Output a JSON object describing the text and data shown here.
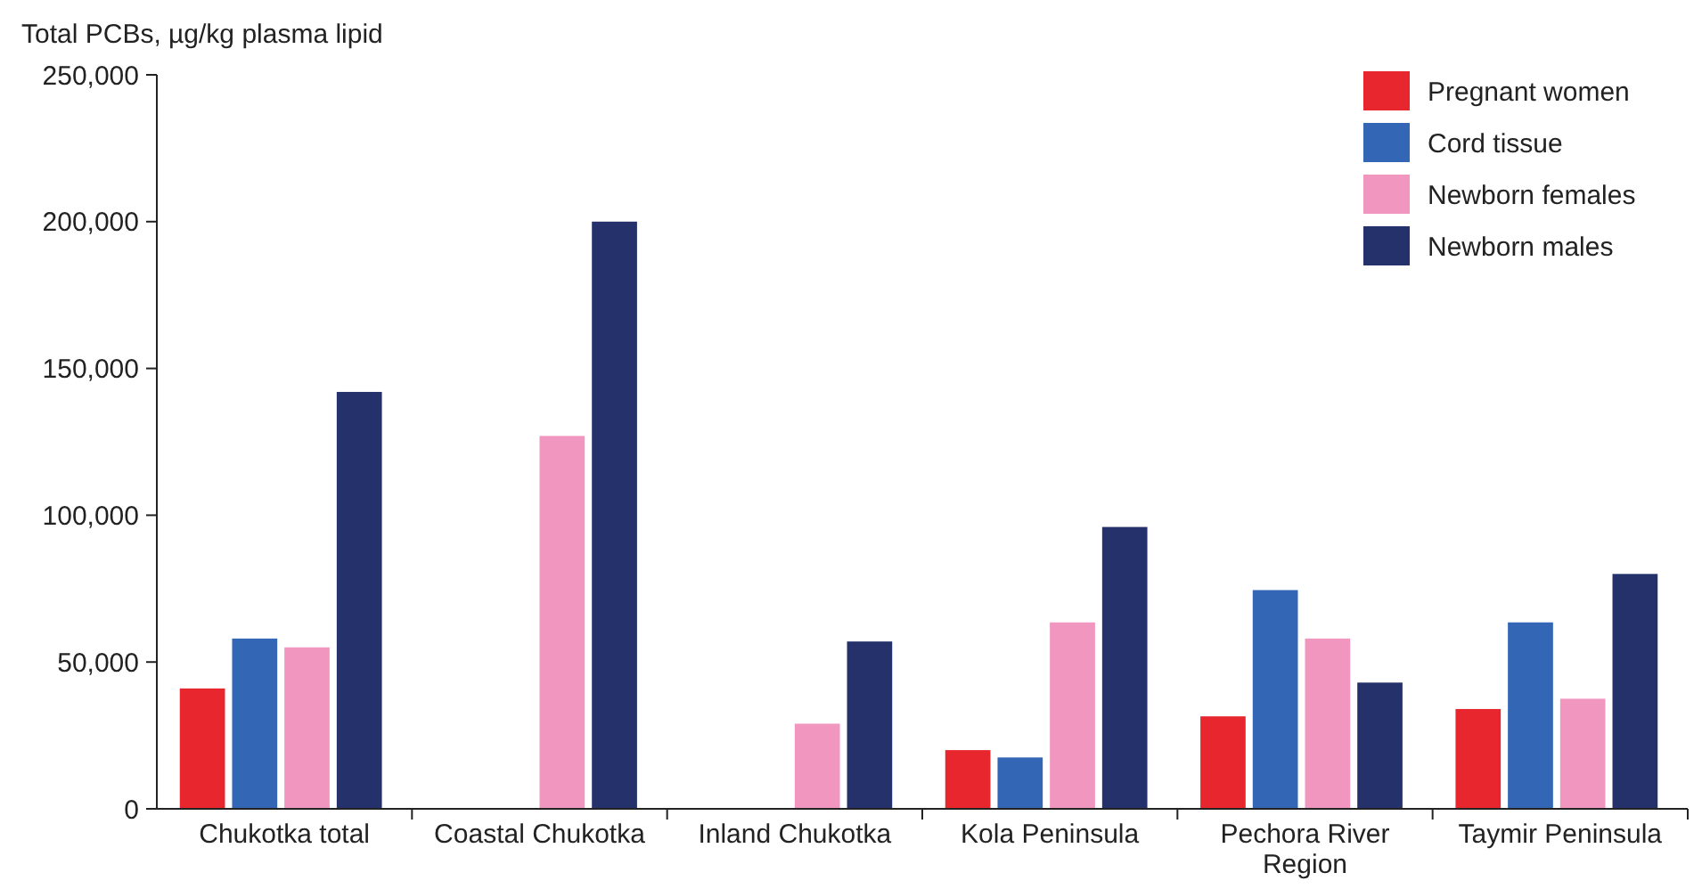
{
  "chart_data": {
    "type": "bar",
    "ylabel": "Total PCBs, µg/kg plasma lipid",
    "categories": [
      "Chukotka total",
      "Coastal Chukotka",
      "Inland Chukotka",
      "Kola Peninsula",
      "Pechora River Region",
      "Taymir Peninsula"
    ],
    "series": [
      {
        "name": "Pregnant women",
        "color": "#e8262e",
        "values": [
          41000,
          null,
          null,
          20000,
          31500,
          34000
        ]
      },
      {
        "name": "Cord tissue",
        "color": "#3366b5",
        "values": [
          58000,
          null,
          null,
          17500,
          74500,
          63500
        ]
      },
      {
        "name": "Newborn females",
        "color": "#f096bf",
        "values": [
          55000,
          127000,
          29000,
          63500,
          58000,
          37500
        ]
      },
      {
        "name": "Newborn males",
        "color": "#24316b",
        "values": [
          142000,
          200000,
          57000,
          96000,
          43000,
          80000
        ]
      }
    ],
    "ylim": [
      0,
      250000
    ],
    "yticks": [
      {
        "value": 0,
        "label": "0"
      },
      {
        "value": 50000,
        "label": "50,000"
      },
      {
        "value": 100000,
        "label": "100,000"
      },
      {
        "value": 150000,
        "label": "150,000"
      },
      {
        "value": 200000,
        "label": "200,000"
      },
      {
        "value": 250000,
        "label": "250,000"
      }
    ],
    "grid": false,
    "legend": "top right"
  }
}
